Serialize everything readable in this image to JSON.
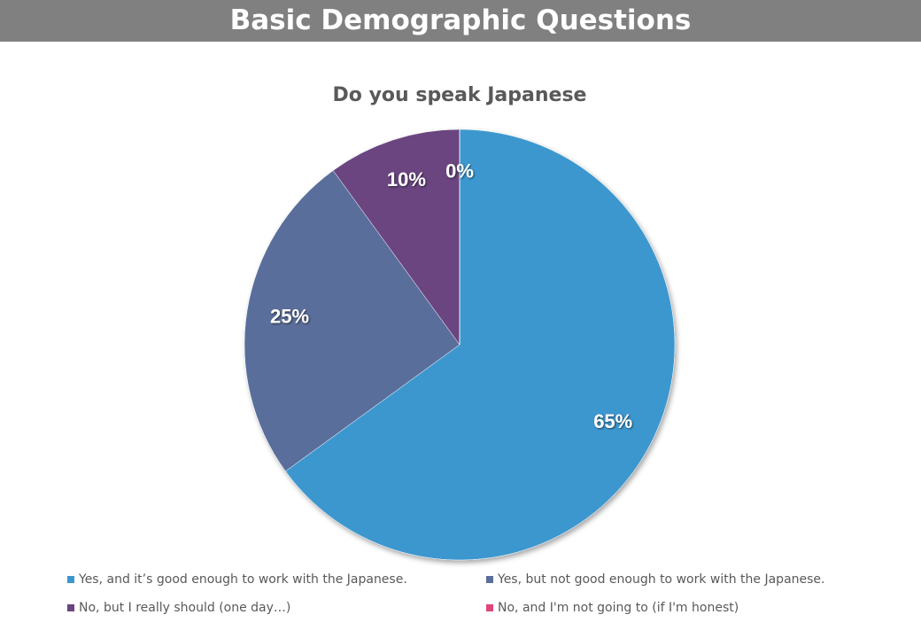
{
  "header": {
    "title": "Basic Demographic Questions"
  },
  "chart_data": {
    "type": "pie",
    "title": "Do you speak Japanese",
    "categories": [
      "Yes, and it’s good enough to work with the Japanese.",
      "Yes, but not good enough to work with the Japanese.",
      "No, but I really should (one day…)",
      "No, and I'm not going to (if I'm honest)"
    ],
    "values": [
      65,
      25,
      10,
      0
    ],
    "value_labels": [
      "65%",
      "25%",
      "10%",
      "0%"
    ],
    "colors": [
      "#3c97cf",
      "#5a6e9b",
      "#6a4580",
      "#e0457b"
    ],
    "legend": "bottom"
  }
}
